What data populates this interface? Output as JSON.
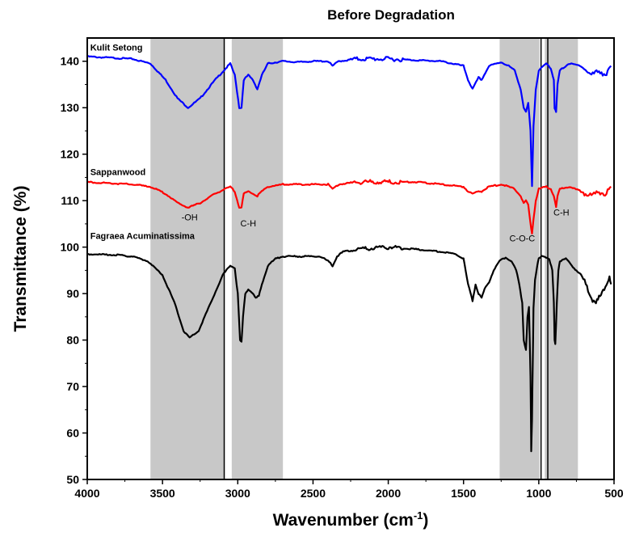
{
  "chart_data": {
    "type": "line",
    "title": "Before Degradation",
    "xlabel": "Wavenumber (cm⁻¹)",
    "xlabel_main": "Wavenumber (cm",
    "xlabel_sup": "-1",
    "xlabel_close": ")",
    "ylabel": "Transmittance (%)",
    "xlim": [
      4000,
      500
    ],
    "ylim": [
      50,
      145
    ],
    "x_reversed": true,
    "x_ticks": [
      4000,
      3500,
      3000,
      2500,
      2000,
      1500,
      1000,
      500
    ],
    "y_ticks": [
      50,
      60,
      70,
      80,
      90,
      100,
      110,
      120,
      130,
      140
    ],
    "grid": false,
    "legend": "none",
    "shaded_bands": [
      {
        "from": 3580,
        "to": 3090
      },
      {
        "from": 3040,
        "to": 2700
      },
      {
        "from": 1260,
        "to": 995
      },
      {
        "from": 960,
        "to": 740
      }
    ],
    "vertical_lines": [
      3090,
      985,
      940
    ],
    "series": [
      {
        "name": "Kulit Setong",
        "color": "#0000ff",
        "x": [
          4000,
          3700,
          3580,
          3480,
          3400,
          3330,
          3250,
          3150,
          3050,
          3020,
          2990,
          2975,
          2960,
          2930,
          2900,
          2870,
          2840,
          2800,
          2700,
          2600,
          2500,
          2400,
          2370,
          2330,
          2200,
          2000,
          1800,
          1650,
          1500,
          1470,
          1440,
          1400,
          1380,
          1330,
          1250,
          1200,
          1160,
          1120,
          1100,
          1085,
          1070,
          1055,
          1045,
          1035,
          1020,
          1000,
          950,
          920,
          900,
          895,
          885,
          875,
          860,
          800,
          720,
          650,
          600,
          550,
          520
        ],
        "y": [
          141,
          140.5,
          139.5,
          136,
          132,
          130,
          132,
          136,
          139.5,
          137,
          130,
          130,
          136,
          137,
          136,
          134,
          137,
          139.5,
          140,
          139.8,
          140,
          140,
          139,
          140,
          140.5,
          140.5,
          140.2,
          140,
          139,
          136,
          134,
          136.5,
          136,
          139,
          139.8,
          139,
          138,
          134,
          130,
          129,
          131,
          125,
          113,
          126,
          134,
          138,
          139.5,
          138.5,
          136,
          130,
          129,
          135,
          138,
          139.5,
          139,
          137,
          138,
          137,
          139
        ]
      },
      {
        "name": "Sappanwood",
        "color": "#ff0000",
        "x": [
          4000,
          3700,
          3580,
          3480,
          3400,
          3330,
          3250,
          3150,
          3050,
          3020,
          2990,
          2975,
          2960,
          2930,
          2900,
          2870,
          2840,
          2800,
          2700,
          2500,
          2400,
          2370,
          2330,
          2200,
          2000,
          1800,
          1650,
          1500,
          1470,
          1440,
          1400,
          1380,
          1330,
          1250,
          1200,
          1160,
          1120,
          1100,
          1085,
          1070,
          1055,
          1045,
          1035,
          1020,
          1000,
          950,
          920,
          900,
          885,
          875,
          860,
          800,
          720,
          650,
          600,
          550,
          520
        ],
        "y": [
          114,
          113.5,
          113,
          111.5,
          109.5,
          108.5,
          109.5,
          111.5,
          113,
          112,
          108.5,
          108.5,
          111.5,
          112,
          111.5,
          111,
          112,
          113,
          113.5,
          113.5,
          113.5,
          112.5,
          113.5,
          114,
          114,
          114,
          113.5,
          113,
          112,
          111.5,
          112,
          112,
          113,
          113.5,
          113,
          112.5,
          111,
          109.5,
          110,
          109,
          105,
          103,
          106,
          110,
          112.5,
          113,
          112.5,
          111,
          108.5,
          111,
          112.5,
          113,
          112,
          111,
          112,
          111.5,
          113
        ]
      },
      {
        "name": "Fagraea Acuminatissima",
        "color": "#000000",
        "x": [
          4000,
          3800,
          3700,
          3600,
          3500,
          3420,
          3360,
          3320,
          3260,
          3180,
          3100,
          3050,
          3020,
          3000,
          2985,
          2975,
          2965,
          2950,
          2930,
          2900,
          2880,
          2860,
          2840,
          2800,
          2750,
          2700,
          2600,
          2450,
          2400,
          2370,
          2340,
          2300,
          2200,
          2000,
          1800,
          1650,
          1550,
          1500,
          1470,
          1440,
          1420,
          1400,
          1380,
          1360,
          1330,
          1300,
          1260,
          1220,
          1180,
          1150,
          1130,
          1110,
          1100,
          1085,
          1075,
          1065,
          1055,
          1050,
          1045,
          1040,
          1035,
          1025,
          1010,
          1000,
          980,
          960,
          930,
          910,
          900,
          895,
          890,
          880,
          870,
          860,
          820,
          780,
          720,
          680,
          650,
          620,
          600,
          580,
          550,
          530,
          520
        ],
        "y": [
          98.5,
          98.3,
          98,
          97,
          94,
          88,
          82,
          80.5,
          82,
          88,
          94,
          96,
          95.5,
          90,
          80,
          79.5,
          85,
          90,
          91,
          90,
          89,
          89.5,
          92,
          96,
          97.5,
          98,
          98,
          98,
          97,
          96,
          98,
          99,
          99.5,
          100,
          99.5,
          99,
          98.5,
          97.5,
          92,
          88.5,
          92,
          90,
          89,
          91,
          92.5,
          95,
          97,
          97.8,
          97,
          95,
          92,
          88,
          80,
          78,
          85,
          87,
          72,
          56,
          63,
          75,
          87,
          93,
          96,
          97.5,
          98,
          98,
          97.5,
          95,
          88,
          80,
          79,
          88,
          95,
          97,
          97.5,
          96,
          94,
          91.5,
          89,
          88,
          89,
          90,
          92,
          94,
          92
        ]
      }
    ],
    "series_labels": [
      {
        "text": "Kulit Setong",
        "x": 3980,
        "y": 142.3
      },
      {
        "text": "Sappanwood",
        "x": 3980,
        "y": 115.5
      },
      {
        "text": "Fagraea Acuminatissima",
        "x": 3980,
        "y": 101.8
      }
    ],
    "annotations": [
      {
        "text": "-OH",
        "x": 3320,
        "y": 105.8
      },
      {
        "text": "C-H",
        "x": 2930,
        "y": 104.5
      },
      {
        "text": "C-O-C",
        "x": 1110,
        "y": 101.2
      },
      {
        "text": "C-H",
        "x": 850,
        "y": 106.8
      }
    ]
  }
}
